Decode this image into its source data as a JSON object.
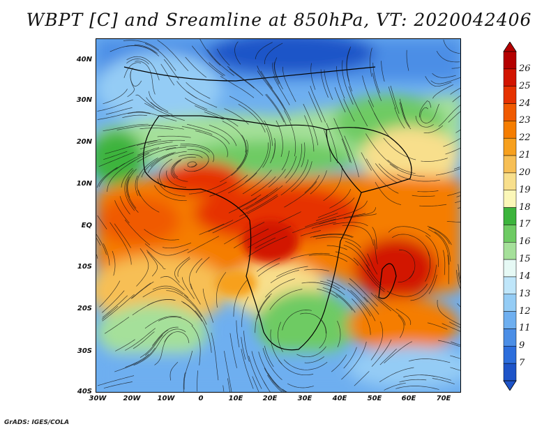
{
  "title": "WBPT [C] and Sreamline at 850hPa, VT: 2020042406",
  "credit": "GrADS: IGES/COLA",
  "lat_labels": [
    "40N",
    "30N",
    "20N",
    "10N",
    "EQ",
    "10S",
    "20S",
    "30S",
    "40S"
  ],
  "lon_labels": [
    "30W",
    "20W",
    "10W",
    "0",
    "10E",
    "20E",
    "30E",
    "40E",
    "50E",
    "60E",
    "70E"
  ],
  "colorbar": {
    "labels": [
      "26",
      "25",
      "24",
      "23",
      "22",
      "21",
      "20",
      "19",
      "18",
      "17",
      "16",
      "15",
      "14",
      "13",
      "12",
      "11",
      "9",
      "7"
    ],
    "colors": [
      "#b40000",
      "#d21400",
      "#e63200",
      "#f05a00",
      "#f57d00",
      "#f7a01e",
      "#f7bf55",
      "#f8df8c",
      "#fbf7b8",
      "#3cb43c",
      "#6ecb63",
      "#a5e09a",
      "#e6f9f5",
      "#bfe6fa",
      "#94ccf5",
      "#6eaff0",
      "#4b8ee6",
      "#2d6edc",
      "#1e54c8"
    ]
  },
  "chart_data": {
    "type": "heatmap",
    "title": "WBPT [C] and Sreamline at 850hPa, VT: 2020042406",
    "variable": "WBPT [C]",
    "level": "850hPa",
    "valid_time": "2020042406",
    "x_range": [
      "30W",
      "75E"
    ],
    "y_range": [
      "40S",
      "45N"
    ],
    "contour_levels": [
      7,
      9,
      11,
      12,
      13,
      14,
      15,
      16,
      17,
      18,
      19,
      20,
      21,
      22,
      23,
      24,
      25,
      26
    ],
    "overlay": "streamlines"
  }
}
